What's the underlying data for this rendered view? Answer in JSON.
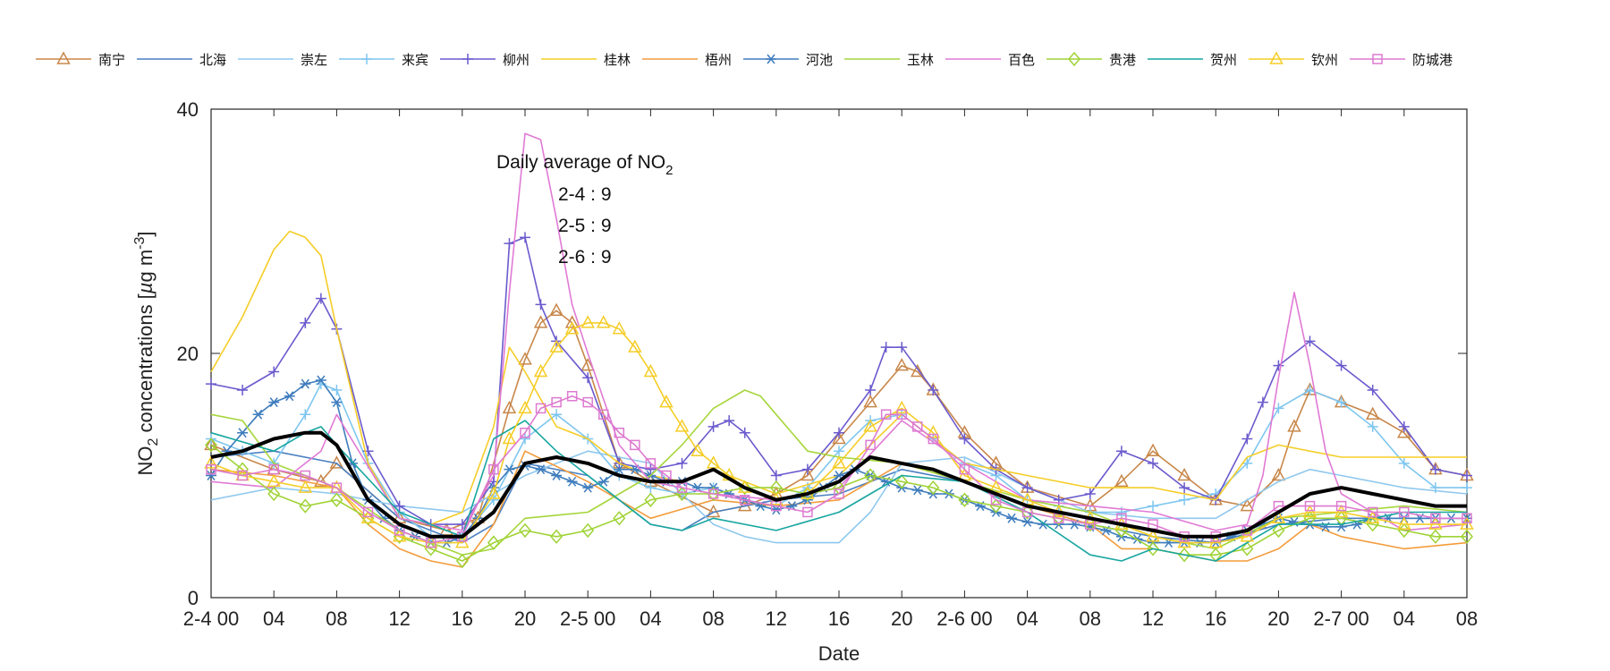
{
  "chart_data": {
    "type": "line",
    "xlabel": "Date",
    "ylabel": "NO2 concentrations [µg m-3]",
    "ylabel_parts": {
      "base": "NO",
      "sub": "2",
      "mid": " concentrations [",
      "mu": "µ",
      "unit": "g m",
      "sup": "-3",
      "close": "]"
    },
    "ylim": [
      0,
      40
    ],
    "yticks": [
      0,
      20,
      40
    ],
    "xlim": [
      0,
      80
    ],
    "xticks": [
      0,
      4,
      8,
      12,
      16,
      20,
      24,
      28,
      32,
      36,
      40,
      44,
      48,
      52,
      56,
      60,
      64,
      68,
      72,
      76,
      80
    ],
    "xtick_labels": [
      "2-4 00",
      "04",
      "08",
      "12",
      "16",
      "20",
      "2-5 00",
      "04",
      "08",
      "12",
      "16",
      "20",
      "2-6 00",
      "04",
      "08",
      "12",
      "16",
      "20",
      "2-7 00",
      "04",
      "08"
    ],
    "x_unit": "hours since 2-4 00",
    "annotation": {
      "title": "Daily average of NO",
      "title_sub": "2",
      "lines": [
        "2-4 : 9",
        "2-5 : 9",
        "2-6 : 9"
      ]
    },
    "legend_position": "top (outside, horizontal)",
    "series": [
      {
        "name": "南宁",
        "color": "#c8874a",
        "marker": "triangle",
        "x": [
          0,
          4,
          7,
          8,
          12,
          15,
          17,
          19,
          20,
          21,
          22,
          23,
          24,
          26,
          28,
          32,
          34,
          36,
          38,
          40,
          42,
          44,
          45,
          46,
          48,
          50,
          52,
          56,
          58,
          60,
          62,
          64,
          66,
          68,
          69,
          70,
          72,
          74,
          76,
          78,
          80
        ],
        "y": [
          12.5,
          10.5,
          9.5,
          11,
          6.5,
          5.5,
          6.5,
          15.5,
          19.5,
          22.5,
          23.5,
          22.5,
          19,
          11,
          9.5,
          7,
          7.5,
          8.5,
          10,
          13,
          16,
          19,
          18.5,
          17,
          13.5,
          11,
          9,
          7.5,
          9.5,
          12,
          10,
          8,
          7.5,
          10,
          14,
          17,
          16,
          15,
          13.5,
          10.5,
          10
        ]
      },
      {
        "name": "北海",
        "color": "#4a7fc0",
        "marker": "none",
        "x": [
          0,
          4,
          8,
          12,
          16,
          18,
          20,
          24,
          28,
          30,
          32,
          36,
          40,
          44,
          48,
          52,
          56,
          60,
          64,
          68,
          72,
          76,
          80
        ],
        "y": [
          11.5,
          12,
          11,
          6.5,
          4.5,
          6,
          11,
          10,
          6,
          5.5,
          7,
          8,
          8.5,
          10.5,
          9.5,
          7.5,
          6,
          5,
          4.5,
          6,
          6.5,
          6.5,
          6.5
        ]
      },
      {
        "name": "崇左",
        "color": "#8fc8ee",
        "marker": "none",
        "x": [
          0,
          4,
          8,
          12,
          16,
          20,
          24,
          28,
          32,
          34,
          36,
          40,
          42,
          44,
          48,
          52,
          56,
          60,
          64,
          68,
          70,
          72,
          76,
          80
        ],
        "y": [
          8,
          9,
          8.5,
          7.5,
          7,
          10,
          12,
          11,
          6,
          5,
          4.5,
          4.5,
          7,
          11,
          11.5,
          9,
          7,
          6.5,
          6.5,
          9.5,
          10.5,
          10,
          9,
          8.5
        ]
      },
      {
        "name": "来宾",
        "color": "#7ec6f0",
        "marker": "plus",
        "x": [
          0,
          2,
          4,
          6,
          7,
          8,
          10,
          12,
          14,
          16,
          18,
          20,
          22,
          24,
          26,
          28,
          30,
          32,
          34,
          36,
          38,
          40,
          42,
          44,
          46,
          48,
          50,
          52,
          54,
          56,
          58,
          60,
          62,
          64,
          66,
          68,
          70,
          72,
          74,
          76,
          78,
          80
        ],
        "y": [
          13,
          12,
          11,
          15,
          17.5,
          17,
          11,
          7,
          5,
          5,
          8,
          13,
          15,
          13,
          10,
          9,
          8.5,
          9,
          8,
          7.5,
          9,
          12,
          14.5,
          15,
          13,
          11,
          10,
          8,
          7.5,
          7,
          7,
          7.5,
          8,
          8.5,
          11,
          15.5,
          17,
          16,
          14,
          11,
          9,
          9
        ]
      },
      {
        "name": "柳州",
        "color": "#6a5acd",
        "marker": "plus",
        "x": [
          0,
          2,
          4,
          6,
          7,
          8,
          10,
          12,
          14,
          16,
          18,
          19,
          20,
          21,
          22,
          24,
          26,
          28,
          30,
          32,
          33,
          34,
          36,
          38,
          40,
          42,
          43,
          44,
          46,
          48,
          50,
          52,
          54,
          56,
          58,
          60,
          62,
          64,
          66,
          67,
          68,
          70,
          72,
          74,
          76,
          78,
          80
        ],
        "y": [
          17.5,
          17,
          18.5,
          22.5,
          24.5,
          22,
          12,
          7.5,
          6,
          6,
          9.5,
          29,
          29.5,
          24,
          21,
          18,
          11,
          10.5,
          11,
          14,
          14.5,
          13.5,
          10,
          10.5,
          13.5,
          17,
          20.5,
          20.5,
          17,
          13,
          10.5,
          9,
          8,
          8.5,
          12,
          11,
          9,
          8,
          13,
          16,
          19,
          21,
          19,
          17,
          14,
          10.5,
          10
        ]
      },
      {
        "name": "桂林",
        "color": "#f5cd27",
        "marker": "none",
        "x": [
          0,
          2,
          4,
          5,
          6,
          7,
          8,
          10,
          12,
          14,
          16,
          18,
          19,
          20,
          22,
          24,
          26,
          28,
          30,
          32,
          36,
          40,
          44,
          48,
          52,
          56,
          60,
          64,
          66,
          68,
          72,
          76,
          80
        ],
        "y": [
          18.5,
          23,
          28.5,
          30,
          29.5,
          28,
          22,
          11,
          6.5,
          6,
          7,
          14,
          20.5,
          18.5,
          14,
          13,
          11,
          10,
          9.5,
          10.5,
          8.5,
          10,
          15,
          11,
          10,
          9,
          9,
          8,
          11.5,
          12.5,
          11.5,
          11.5,
          11.5
        ]
      },
      {
        "name": "梧州",
        "color": "#f39c3c",
        "marker": "none",
        "x": [
          0,
          4,
          8,
          10,
          12,
          14,
          16,
          18,
          20,
          24,
          28,
          32,
          36,
          40,
          44,
          48,
          52,
          56,
          58,
          60,
          62,
          64,
          66,
          68,
          70,
          72,
          76,
          80
        ],
        "y": [
          10.5,
          10,
          9,
          6,
          4,
          3,
          2.5,
          6,
          12,
          9.5,
          6.5,
          8,
          7.5,
          8,
          11,
          9.5,
          7.5,
          6,
          4,
          4,
          3.5,
          3,
          3,
          4,
          6,
          5,
          4,
          4.5
        ]
      },
      {
        "name": "河池",
        "color": "#3f7dbd",
        "marker": "asterisk",
        "x": [
          0,
          1,
          2,
          3,
          4,
          5,
          6,
          7,
          8,
          9,
          10,
          11,
          12,
          13,
          14,
          15,
          16,
          17,
          18,
          19,
          20,
          21,
          22,
          23,
          24,
          25,
          26,
          27,
          28,
          29,
          30,
          31,
          32,
          33,
          34,
          35,
          36,
          37,
          38,
          39,
          40,
          41,
          42,
          43,
          44,
          45,
          46,
          47,
          48,
          49,
          50,
          51,
          52,
          53,
          54,
          55,
          56,
          57,
          58,
          59,
          60,
          61,
          62,
          63,
          64,
          65,
          66,
          67,
          68,
          69,
          70,
          71,
          72,
          73,
          74,
          75,
          76,
          77,
          78,
          79,
          80
        ],
        "y": [
          10,
          12,
          13.5,
          15,
          16,
          16.5,
          17.5,
          17.8,
          16,
          11,
          8,
          6.5,
          5.5,
          5,
          4.5,
          4.5,
          5,
          6.5,
          9,
          10.5,
          10.8,
          10.5,
          10,
          9.5,
          9,
          9.5,
          10.5,
          10.5,
          10,
          9.5,
          9.5,
          9,
          9,
          8.5,
          8,
          7.5,
          7.2,
          7.5,
          8,
          9,
          10,
          10.5,
          10,
          9.5,
          9,
          8.8,
          8.5,
          8.5,
          8,
          7.5,
          7,
          6.5,
          6.2,
          6,
          6,
          6,
          5.8,
          5.5,
          5,
          4.8,
          4.5,
          4.5,
          4.5,
          4.5,
          4.5,
          5,
          5.5,
          6,
          6.5,
          6.2,
          6,
          5.8,
          5.8,
          6,
          6.5,
          6.5,
          6.5,
          6.5,
          6.5,
          6.5,
          6.5
        ]
      },
      {
        "name": "玉林",
        "color": "#a6d63b",
        "marker": "none",
        "x": [
          0,
          2,
          4,
          8,
          12,
          16,
          18,
          20,
          24,
          28,
          30,
          32,
          34,
          35,
          36,
          38,
          40,
          44,
          48,
          52,
          56,
          60,
          64,
          68,
          72,
          76,
          80
        ],
        "y": [
          15,
          14.5,
          11,
          9,
          5.5,
          3.5,
          4,
          6.5,
          7,
          10,
          12.5,
          15.5,
          17,
          16.5,
          15,
          12,
          11.5,
          11,
          9.5,
          8,
          7,
          5,
          4,
          6.5,
          7,
          7.5,
          7
        ]
      },
      {
        "name": "百色",
        "color": "#e07ad5",
        "marker": "none",
        "x": [
          0,
          4,
          7,
          8,
          12,
          16,
          18,
          19,
          20,
          21,
          22,
          23,
          24,
          26,
          28,
          32,
          36,
          40,
          44,
          48,
          52,
          56,
          60,
          64,
          66,
          67,
          68,
          69,
          70,
          71,
          72,
          74,
          76,
          80
        ],
        "y": [
          9.5,
          9,
          12,
          15,
          6.5,
          5.5,
          10,
          25,
          38,
          37.5,
          31,
          24,
          20,
          12.5,
          9.5,
          8.5,
          8,
          9,
          14.5,
          11,
          8,
          7.5,
          7,
          5.5,
          6,
          10,
          18,
          25,
          19,
          12,
          8.5,
          7,
          5.5,
          6
        ]
      },
      {
        "name": "贵港",
        "color": "#9fd335",
        "marker": "diamond",
        "x": [
          0,
          2,
          4,
          6,
          8,
          10,
          12,
          14,
          16,
          18,
          20,
          22,
          24,
          26,
          28,
          30,
          32,
          34,
          36,
          38,
          40,
          42,
          44,
          46,
          48,
          50,
          52,
          54,
          56,
          58,
          60,
          62,
          64,
          66,
          68,
          70,
          72,
          74,
          76,
          78,
          80
        ],
        "y": [
          12.5,
          10.5,
          8.5,
          7.5,
          8,
          6.5,
          5,
          4,
          3,
          4.5,
          5.5,
          5,
          5.5,
          6.5,
          8,
          8.5,
          8.5,
          9,
          9,
          8.5,
          9,
          10,
          9.5,
          9,
          8,
          7.5,
          7,
          6.5,
          6,
          5.5,
          4,
          3.5,
          3.5,
          4,
          5.5,
          6.5,
          6.5,
          6,
          5.5,
          5,
          5
        ]
      },
      {
        "name": "贺州",
        "color": "#17a6a0",
        "marker": "none",
        "x": [
          0,
          4,
          6,
          7,
          8,
          12,
          16,
          18,
          20,
          22,
          24,
          28,
          30,
          32,
          36,
          40,
          44,
          48,
          52,
          56,
          58,
          60,
          64,
          68,
          72,
          76,
          80
        ],
        "y": [
          13.5,
          12,
          13.5,
          14,
          12.5,
          7,
          5,
          13,
          14.5,
          12,
          10,
          6,
          5.5,
          6.5,
          5.5,
          7,
          10,
          9.5,
          7,
          3.5,
          3,
          4,
          3,
          6,
          6,
          7,
          7
        ]
      },
      {
        "name": "钦州",
        "color": "#f5cd27",
        "marker": "triangle",
        "x": [
          0,
          2,
          4,
          6,
          8,
          10,
          12,
          14,
          16,
          18,
          19,
          20,
          21,
          22,
          23,
          24,
          25,
          26,
          27,
          28,
          29,
          30,
          31,
          32,
          33,
          34,
          36,
          38,
          40,
          42,
          44,
          46,
          48,
          50,
          52,
          54,
          56,
          58,
          60,
          62,
          64,
          66,
          68,
          70,
          72,
          74,
          76,
          78,
          80
        ],
        "y": [
          11,
          10,
          9.5,
          9,
          9,
          6.5,
          5,
          4.5,
          4.5,
          8.5,
          13,
          15.5,
          18.5,
          20.5,
          22,
          22.5,
          22.5,
          22,
          20.5,
          18.5,
          16,
          14,
          12,
          11,
          10,
          9,
          8,
          8.5,
          11,
          14,
          15.5,
          13.5,
          10,
          9,
          8,
          7,
          6.5,
          6,
          5,
          4.5,
          4.5,
          5,
          6.5,
          7,
          7,
          6.5,
          6,
          6,
          6
        ]
      },
      {
        "name": "防城港",
        "color": "#dd7ad0",
        "marker": "square",
        "x": [
          0,
          2,
          4,
          6,
          8,
          10,
          12,
          14,
          16,
          18,
          20,
          21,
          22,
          23,
          24,
          25,
          26,
          27,
          28,
          29,
          30,
          32,
          34,
          36,
          38,
          40,
          42,
          43,
          44,
          45,
          46,
          48,
          50,
          52,
          54,
          56,
          58,
          60,
          62,
          64,
          66,
          68,
          70,
          72,
          74,
          76,
          78,
          80
        ],
        "y": [
          10.5,
          10,
          10.5,
          10,
          9,
          7,
          5.5,
          4.5,
          5,
          10.5,
          13.5,
          15.5,
          16,
          16.5,
          16,
          15,
          13.5,
          12.5,
          11,
          10,
          9,
          8.5,
          8,
          7.5,
          7,
          8.5,
          12.5,
          15,
          15,
          14,
          13,
          10.5,
          8,
          7,
          6.5,
          6,
          6.5,
          6,
          5,
          5,
          5.5,
          7.5,
          7.5,
          7.5,
          7,
          7,
          6.5,
          6.5
        ]
      },
      {
        "name": "average",
        "color": "#000000",
        "marker": "none",
        "legend": false,
        "x": [
          0,
          2,
          4,
          6,
          7,
          8,
          10,
          12,
          14,
          16,
          18,
          20,
          22,
          24,
          26,
          28,
          30,
          32,
          34,
          36,
          38,
          40,
          42,
          44,
          46,
          48,
          50,
          52,
          54,
          56,
          58,
          60,
          62,
          64,
          66,
          68,
          70,
          72,
          74,
          76,
          78,
          80
        ],
        "y": [
          11.5,
          12,
          13,
          13.5,
          13.5,
          12.5,
          8,
          6,
          5,
          5,
          7,
          11,
          11.5,
          11,
          10,
          9.5,
          9.5,
          10.5,
          9,
          8,
          8.5,
          9.5,
          11.5,
          11,
          10.5,
          9.5,
          8.5,
          7.5,
          7,
          6.5,
          6,
          5.5,
          5,
          5,
          5.5,
          7,
          8.5,
          9,
          8.5,
          8,
          7.5,
          7.5
        ]
      }
    ]
  }
}
